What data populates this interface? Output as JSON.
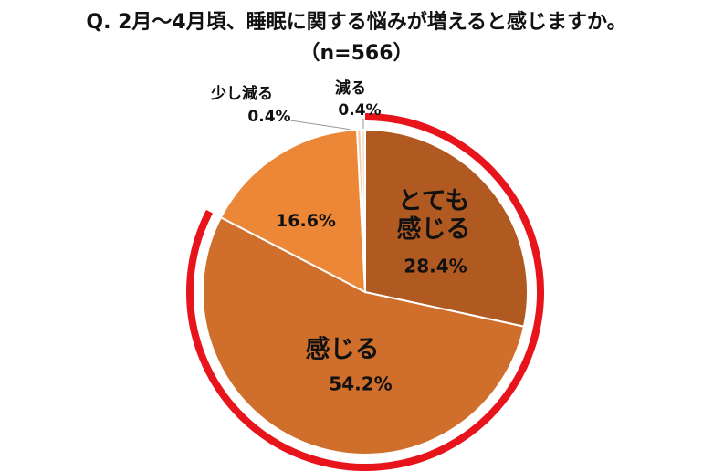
{
  "chart_data": {
    "type": "pie",
    "title": "Q. 2月～4月頃、睡眠に関する悩みが増えると感じますか。",
    "subtitle": "（n=566）",
    "categories": [
      "とても\n感じる",
      "感じる",
      null,
      "少し減る",
      "減る"
    ],
    "values": [
      28.4,
      54.2,
      16.6,
      0.4,
      0.4
    ],
    "value_labels": [
      "28.4%",
      "54.2%",
      "16.6%",
      "0.4%",
      "0.4%"
    ],
    "colors": [
      "#b05a22",
      "#d06e2c",
      "#ec8737",
      "#f6c9a0",
      "#f3e3d3"
    ]
  }
}
